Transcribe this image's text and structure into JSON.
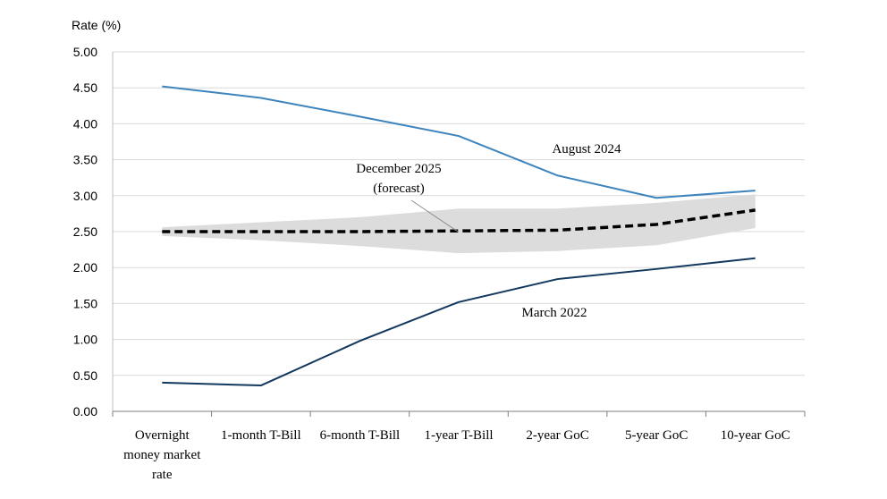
{
  "chart_data": {
    "type": "line",
    "title": "",
    "ylabel": "Rate (%)",
    "xlabel": "",
    "ylim": [
      0,
      5
    ],
    "yticks": [
      "0.00",
      "0.50",
      "1.00",
      "1.50",
      "2.00",
      "2.50",
      "3.00",
      "3.50",
      "4.00",
      "4.50",
      "5.00"
    ],
    "grid": true,
    "categories": [
      [
        "Overnight",
        "money market",
        "rate"
      ],
      [
        "1-month T-Bill"
      ],
      [
        "6-month T-Bill"
      ],
      [
        "1-year T-Bill"
      ],
      [
        "2-year GoC"
      ],
      [
        "5-year GoC"
      ],
      [
        "10-year GoC"
      ]
    ],
    "series": [
      {
        "name": "August 2024",
        "style": "solid",
        "color": "#3e84bd",
        "values": [
          4.52,
          4.36,
          4.1,
          3.83,
          3.28,
          2.97,
          3.07
        ]
      },
      {
        "name": "March 2022",
        "style": "solid",
        "color": "#12385e",
        "values": [
          0.4,
          0.36,
          0.98,
          1.52,
          1.84,
          1.98,
          2.13
        ]
      },
      {
        "name": "December 2025 (forecast)",
        "style": "dashed",
        "color": "#000000",
        "values": [
          2.5,
          2.5,
          2.5,
          2.51,
          2.52,
          2.6,
          2.8
        ]
      }
    ],
    "band": {
      "color": "#dcdcdc",
      "upper": [
        2.56,
        2.63,
        2.7,
        2.82,
        2.82,
        2.9,
        3.02
      ],
      "lower": [
        2.44,
        2.38,
        2.3,
        2.2,
        2.23,
        2.31,
        2.55
      ]
    },
    "annotations": {
      "august": "August 2024",
      "march": "March 2022",
      "december_line1": "December 2025",
      "december_line2": "(forecast)"
    }
  }
}
